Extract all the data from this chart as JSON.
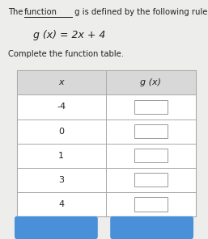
{
  "title_part1": "The ",
  "title_underlined": "function",
  "title_part2": " g is defined by the following rule.",
  "equation": "g (x) = 2x + 4",
  "subtitle": "Complete the function table.",
  "col1_header": "x",
  "col2_header": "g (x)",
  "x_values": [
    "-4",
    "0",
    "1",
    "3",
    "4"
  ],
  "bg_color": "#ededec",
  "table_bg": "#ffffff",
  "header_bg": "#e0e0e0",
  "input_box_color": "#ffffff",
  "input_box_border": "#999999",
  "button_color": "#4a90d9",
  "text_color": "#222222",
  "line_color": "#aaaaaa"
}
